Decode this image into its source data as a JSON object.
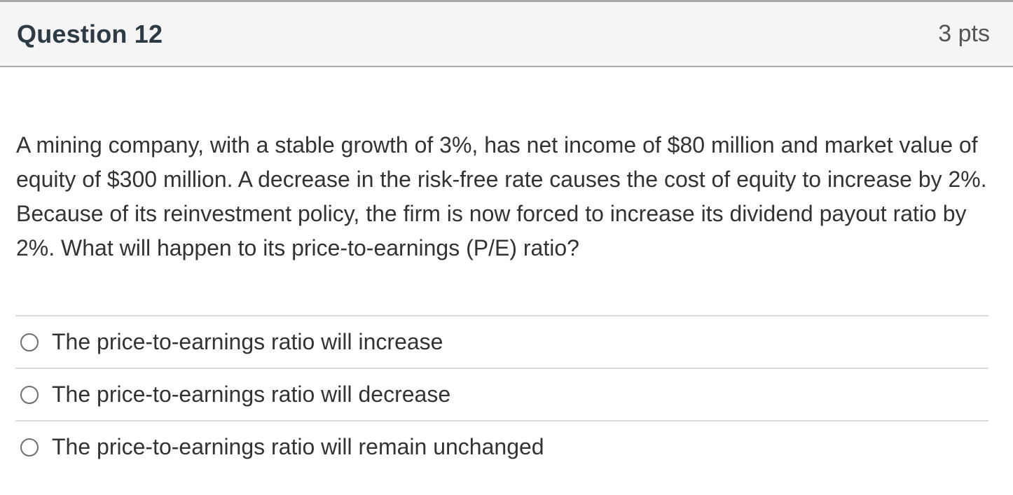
{
  "header": {
    "title": "Question 12",
    "points": "3 pts"
  },
  "question": {
    "text": "A mining company, with a stable growth of 3%, has net income of $80 million and market value of equity of $300 million. A decrease in the risk-free rate causes the cost of equity to increase by 2%. Because of its reinvestment policy, the firm is now forced to increase its dividend payout ratio by 2%. What will happen to its price-to-earnings (P/E) ratio?"
  },
  "options": [
    {
      "label": "The price-to-earnings ratio will increase",
      "selected": false
    },
    {
      "label": "The price-to-earnings ratio will decrease",
      "selected": false
    },
    {
      "label": "The price-to-earnings ratio will remain unchanged",
      "selected": false
    }
  ],
  "colors": {
    "header_bg": "#f5f5f5",
    "header_border_top": "#a9a9a9",
    "header_border_bottom": "#ababab",
    "divider": "#dcdcdc",
    "title_text": "#2d3b45",
    "points_text": "#555555",
    "body_text": "#333333",
    "radio_border": "#6e6e6e"
  }
}
